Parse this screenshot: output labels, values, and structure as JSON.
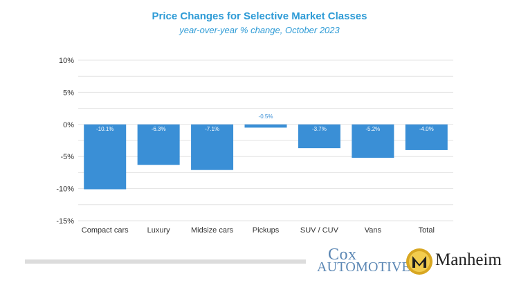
{
  "chart_data": {
    "type": "bar",
    "title": "Price Changes for Selective Market Classes",
    "subtitle": "year-over-year % change, October 2023",
    "categories": [
      "Compact cars",
      "Luxury",
      "Midsize cars",
      "Pickups",
      "SUV / CUV",
      "Vans",
      "Total"
    ],
    "values": [
      -10.1,
      -6.3,
      -7.1,
      -0.5,
      -3.7,
      -5.2,
      -4.0
    ],
    "data_labels": [
      "-10.1%",
      "-6.3%",
      "-7.1%",
      "-0.5%",
      "-3.7%",
      "-5.2%",
      "-4.0%"
    ],
    "ylim": [
      -15,
      10
    ],
    "yticks": [
      10,
      5,
      0,
      -5,
      -10,
      -15
    ],
    "ytick_labels": [
      "10%",
      "5%",
      "0%",
      "-5%",
      "-10%",
      "-15%"
    ],
    "xlabel": "",
    "ylabel": "",
    "grid": true,
    "legend": "none"
  },
  "colors": {
    "bar": "#3a8fd6",
    "title": "#2e9bd6",
    "grid": "#e3e3e3",
    "axis_text": "#333333",
    "data_label_inside": "#ffffff",
    "data_label_outside": "#3a8fd6"
  },
  "logos": {
    "cox_line1": "Cox",
    "cox_line2": "AUTOMOTIVE",
    "manheim_word": "Manheim",
    "manheim_emblem_icon": "manheim-m-emblem"
  }
}
